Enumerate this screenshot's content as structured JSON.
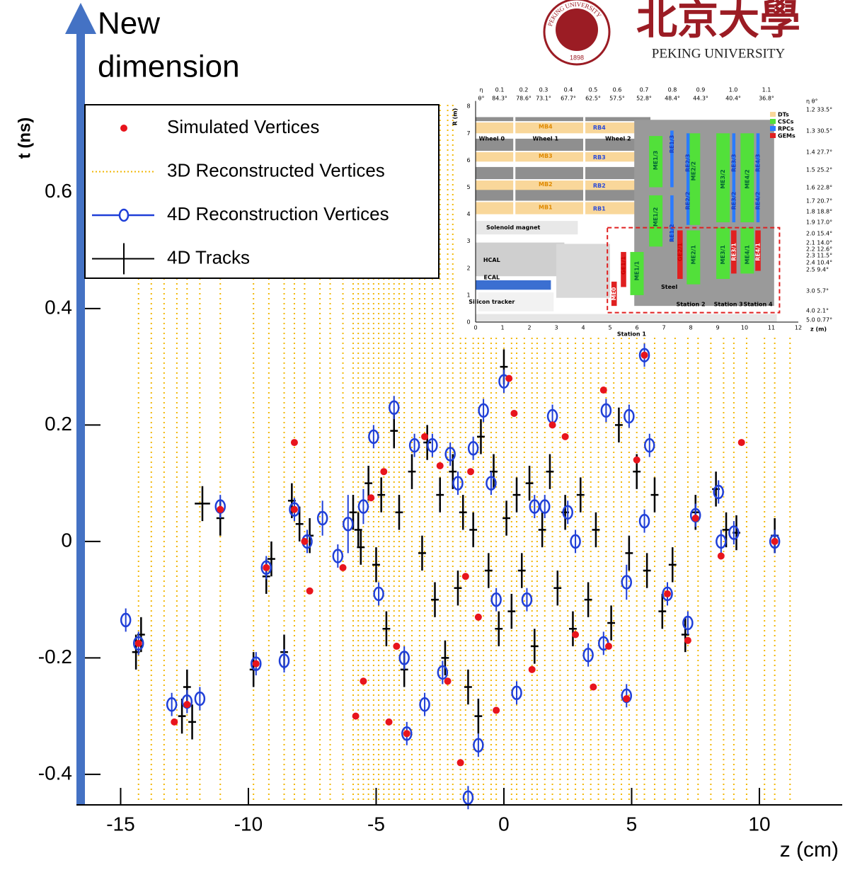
{
  "chart_data": {
    "type": "scatter",
    "annotation": [
      "New",
      "dimension"
    ],
    "y_label": "t (ns)",
    "x_label": "z (cm)",
    "xlim": [
      -16.6,
      13.2
    ],
    "ylim": [
      -0.45,
      0.93
    ],
    "xticks": [
      -15,
      -10,
      -5,
      0,
      5,
      10
    ],
    "yticks": [
      -0.4,
      -0.2,
      0,
      0.2,
      0.4,
      0.6
    ],
    "legend": "upper left",
    "series": [
      {
        "name": "Simulated Vertices",
        "kind": "points",
        "color": "#e8141c",
        "x": [
          -14.3,
          -12.9,
          -12.4,
          -11.1,
          -9.7,
          -9.3,
          -8.2,
          -8.2,
          -7.8,
          -7.6,
          -6.3,
          -5.8,
          -5.5,
          -5.2,
          -4.7,
          -4.5,
          -4.2,
          -3.8,
          -3.1,
          -2.5,
          -2.2,
          -1.7,
          -1.5,
          -1.3,
          -1.0,
          -0.3,
          0.2,
          0.4,
          1.1,
          1.9,
          2.4,
          2.8,
          3.5,
          3.9,
          4.1,
          4.8,
          5.2,
          5.5,
          7.5,
          8.5,
          9.3,
          10.6,
          7.2,
          6.4
        ],
        "values": [
          -0.175,
          -0.31,
          -0.28,
          0.055,
          -0.21,
          -0.045,
          0.17,
          0.055,
          0.0,
          -0.085,
          -0.045,
          -0.3,
          -0.24,
          0.075,
          0.12,
          -0.31,
          -0.18,
          -0.33,
          0.18,
          0.13,
          -0.24,
          -0.38,
          -0.06,
          0.12,
          -0.13,
          -0.29,
          0.28,
          0.22,
          -0.22,
          0.2,
          0.18,
          -0.16,
          -0.25,
          0.26,
          -0.18,
          -0.27,
          0.14,
          0.32,
          0.04,
          -0.025,
          0.17,
          0.0,
          -0.17,
          -0.09
        ]
      },
      {
        "name": "3D Reconstructed Vertices",
        "kind": "vlines",
        "color": "#f2b705",
        "x": [
          -14.3,
          -13.8,
          -13.3,
          -12.8,
          -12.4,
          -11.9,
          -11.1,
          -9.8,
          -9.2,
          -8.6,
          -8.2,
          -7.8,
          -7.2,
          -6.8,
          -6.3,
          -5.9,
          -5.7,
          -5.5,
          -5.3,
          -5.1,
          -4.9,
          -4.7,
          -4.5,
          -4.3,
          -4.1,
          -3.9,
          -3.6,
          -3.3,
          -3.1,
          -2.8,
          -2.5,
          -2.2,
          -2.0,
          -1.7,
          -1.5,
          -1.2,
          -1.0,
          -0.8,
          -0.5,
          -0.3,
          0.0,
          0.3,
          0.5,
          0.8,
          1.1,
          1.3,
          1.6,
          1.9,
          2.2,
          2.5,
          2.8,
          3.1,
          3.4,
          3.7,
          4.0,
          4.3,
          4.6,
          4.9,
          5.2,
          5.5,
          5.9,
          6.3,
          6.7,
          7.2,
          7.6,
          8.1,
          8.6,
          9.0,
          9.5,
          10.2,
          10.6,
          11.2
        ]
      },
      {
        "name": "4D Reconstruction Vertices",
        "kind": "circles",
        "color": "#1f3fd8",
        "x": [
          -14.8,
          -14.3,
          -13.0,
          -12.4,
          -11.9,
          -11.1,
          -9.7,
          -9.3,
          -8.6,
          -8.2,
          -7.7,
          -7.1,
          -6.5,
          -6.1,
          -5.5,
          -5.1,
          -4.9,
          -4.3,
          -3.9,
          -3.8,
          -3.5,
          -3.1,
          -2.8,
          -2.4,
          -2.1,
          -1.8,
          -1.4,
          -1.2,
          -1.0,
          -0.8,
          -0.3,
          0.0,
          0.5,
          1.2,
          1.6,
          1.9,
          2.5,
          3.3,
          3.9,
          4.0,
          4.8,
          4.8,
          4.9,
          5.5,
          5.7,
          5.5,
          6.4,
          7.2,
          7.5,
          8.4,
          8.5,
          9.0,
          10.6,
          -0.5,
          0.9,
          2.8
        ],
        "values": [
          -0.135,
          -0.175,
          -0.28,
          -0.275,
          -0.27,
          0.06,
          -0.21,
          -0.045,
          -0.205,
          0.055,
          0.0,
          0.04,
          -0.025,
          0.03,
          0.06,
          0.18,
          -0.09,
          0.23,
          -0.2,
          -0.33,
          0.165,
          -0.28,
          0.165,
          -0.225,
          0.15,
          0.1,
          -0.44,
          0.16,
          -0.35,
          0.225,
          -0.1,
          0.275,
          -0.26,
          0.06,
          0.06,
          0.215,
          0.05,
          -0.195,
          -0.175,
          0.225,
          -0.265,
          -0.07,
          0.215,
          0.32,
          0.165,
          0.035,
          -0.09,
          -0.14,
          0.045,
          0.085,
          0.0,
          0.015,
          0.0,
          0.1,
          -0.1,
          0.0
        ],
        "errors": [
          0.02,
          0.02,
          0.02,
          0.02,
          0.02,
          0.02,
          0.02,
          0.02,
          0.02,
          0.02,
          0.02,
          0.03,
          0.02,
          0.05,
          0.03,
          0.02,
          0.02,
          0.02,
          0.02,
          0.02,
          0.02,
          0.02,
          0.02,
          0.02,
          0.02,
          0.02,
          0.02,
          0.02,
          0.02,
          0.02,
          0.02,
          0.02,
          0.02,
          0.02,
          0.02,
          0.02,
          0.02,
          0.02,
          0.02,
          0.02,
          0.02,
          0.03,
          0.02,
          0.02,
          0.02,
          0.02,
          0.02,
          0.02,
          0.02,
          0.02,
          0.02,
          0.02,
          0.02,
          0.02,
          0.02,
          0.02
        ]
      },
      {
        "name": "4D Tracks",
        "kind": "crosses",
        "color": "#000000",
        "x": [
          -14.4,
          -14.2,
          -12.6,
          -12.4,
          -12.2,
          -11.8,
          -11.1,
          -9.8,
          -9.3,
          -9.1,
          -8.6,
          -8.3,
          -8.0,
          -7.6,
          -5.9,
          -5.7,
          -5.6,
          -5.3,
          -5.0,
          -4.8,
          -4.6,
          -4.3,
          -4.1,
          -3.9,
          -3.6,
          -3.2,
          -3.0,
          -2.7,
          -2.5,
          -2.3,
          -2.0,
          -1.8,
          -1.6,
          -1.4,
          -1.2,
          -1.0,
          -0.9,
          -0.6,
          -0.4,
          -0.2,
          0.0,
          0.1,
          0.3,
          0.5,
          0.7,
          1.0,
          1.2,
          1.5,
          1.8,
          2.1,
          2.4,
          2.7,
          3.0,
          3.3,
          3.6,
          4.2,
          4.5,
          4.9,
          5.2,
          5.6,
          5.9,
          6.2,
          6.6,
          7.1,
          7.5,
          8.3,
          8.7,
          9.1,
          10.6
        ],
        "values": [
          -0.19,
          -0.16,
          -0.3,
          -0.25,
          -0.31,
          0.065,
          0.04,
          -0.22,
          -0.06,
          -0.03,
          -0.19,
          0.07,
          0.03,
          0.01,
          0.05,
          0.02,
          -0.01,
          0.1,
          -0.04,
          0.08,
          -0.15,
          0.19,
          0.05,
          -0.22,
          0.12,
          -0.02,
          0.17,
          -0.1,
          0.08,
          -0.2,
          0.12,
          -0.08,
          0.05,
          -0.25,
          0.02,
          -0.3,
          0.18,
          -0.05,
          0.12,
          -0.15,
          0.3,
          0.04,
          -0.12,
          0.08,
          -0.05,
          0.1,
          -0.18,
          0.02,
          0.12,
          -0.08,
          0.05,
          -0.15,
          0.08,
          -0.1,
          0.02,
          -0.14,
          0.2,
          -0.02,
          0.12,
          -0.05,
          0.08,
          -0.12,
          -0.04,
          -0.16,
          0.05,
          0.09,
          0.02,
          0.015,
          0.01
        ],
        "errors": [
          0.03,
          0.03,
          0.03,
          0.03,
          0.03,
          0.03,
          0.03,
          0.03,
          0.03,
          0.03,
          0.03,
          0.03,
          0.03,
          0.03,
          0.03,
          0.03,
          0.03,
          0.03,
          0.03,
          0.03,
          0.03,
          0.03,
          0.03,
          0.03,
          0.03,
          0.03,
          0.03,
          0.03,
          0.03,
          0.03,
          0.03,
          0.03,
          0.03,
          0.03,
          0.03,
          0.03,
          0.03,
          0.03,
          0.03,
          0.03,
          0.03,
          0.03,
          0.03,
          0.03,
          0.03,
          0.03,
          0.03,
          0.03,
          0.03,
          0.03,
          0.03,
          0.03,
          0.03,
          0.03,
          0.03,
          0.03,
          0.03,
          0.03,
          0.03,
          0.03,
          0.03,
          0.03,
          0.03,
          0.03,
          0.03,
          0.03,
          0.03,
          0.03,
          0.03
        ],
        "x_errors": [
          0.15,
          0.15,
          0.15,
          0.15,
          0.15,
          0.3,
          0.15,
          0.15,
          0.15,
          0.15,
          0.15,
          0.15,
          0.15,
          0.15,
          0.15,
          0.15,
          0.15,
          0.15,
          0.15,
          0.15,
          0.15,
          0.15,
          0.15,
          0.15,
          0.15,
          0.15,
          0.15,
          0.15,
          0.15,
          0.15,
          0.15,
          0.15,
          0.15,
          0.15,
          0.15,
          0.15,
          0.15,
          0.15,
          0.15,
          0.15,
          0.15,
          0.15,
          0.15,
          0.15,
          0.15,
          0.15,
          0.15,
          0.15,
          0.15,
          0.15,
          0.15,
          0.15,
          0.15,
          0.15,
          0.15,
          0.15,
          0.15,
          0.15,
          0.15,
          0.15,
          0.15,
          0.15,
          0.15,
          0.15,
          0.15,
          0.15,
          0.15,
          0.15,
          0.15
        ]
      }
    ]
  },
  "inset": {
    "y_label": "R (m)",
    "x_label": "z (m)",
    "yticks": [
      "0",
      "1",
      "2",
      "3",
      "4",
      "5",
      "6",
      "7",
      "8"
    ],
    "xticks": [
      "0",
      "1",
      "2",
      "3",
      "4",
      "5",
      "6",
      "7",
      "8",
      "9",
      "10",
      "11",
      "12"
    ],
    "eta_top": [
      "η",
      "0.1",
      "0.2",
      "0.3",
      "0.4",
      "0.5",
      "0.6",
      "0.7",
      "0.8",
      "0.9",
      "1.0",
      "1.1"
    ],
    "theta_top": [
      "θ°",
      "84.3°",
      "78.6°",
      "73.1°",
      "67.7°",
      "62.5°",
      "57.5°",
      "52.8°",
      "48.4°",
      "44.3°",
      "40.4°",
      "36.8°"
    ],
    "eta_right": [
      "η   θ°",
      "1.2  33.5°",
      "1.3  30.5°",
      "1.4  27.7°",
      "1.5  25.2°",
      "1.6  22.8°",
      "1.7  20.7°",
      "1.8  18.8°",
      "1.9  17.0°",
      "2.0  15.4°",
      "2.1  14.0°",
      "2.2  12.6°",
      "2.3  11.5°",
      "2.4  10.4°",
      "2.5  9.4°",
      "3.0  5.7°",
      "4.0  2.1°",
      "5.0  0.77°"
    ],
    "legend": [
      "DTs",
      "CSCs",
      "RPCs",
      "GEMs"
    ],
    "labels": [
      "Wheel 0",
      "Wheel 1",
      "Wheel 2",
      "MB1",
      "MB2",
      "MB3",
      "MB4",
      "RB1",
      "RB2",
      "RB3",
      "RB4",
      "Solenoid magnet",
      "HCAL",
      "ECAL",
      "Silicon tracker",
      "Steel",
      "Station 1",
      "Station 2",
      "Station 3",
      "Station 4"
    ],
    "chambers": [
      "ME0",
      "GE1/1",
      "ME1/1",
      "ME1/2",
      "RE1/2",
      "ME1/3",
      "RE1/3",
      "GE2/1",
      "ME2/1",
      "RE2/2",
      "ME2/2",
      "RE2/3",
      "ME3/1",
      "RE3/1",
      "ME3/2",
      "RE3/2",
      "RE3/3",
      "ME4/1",
      "RE4/1",
      "ME4/2",
      "RE4/2",
      "RE4/3"
    ]
  },
  "logo": {
    "seal_text": "PEKING UNIVERSITY",
    "seal_year": "1898",
    "name_cn": "北京大學",
    "name_en": "PEKING UNIVERSITY"
  }
}
